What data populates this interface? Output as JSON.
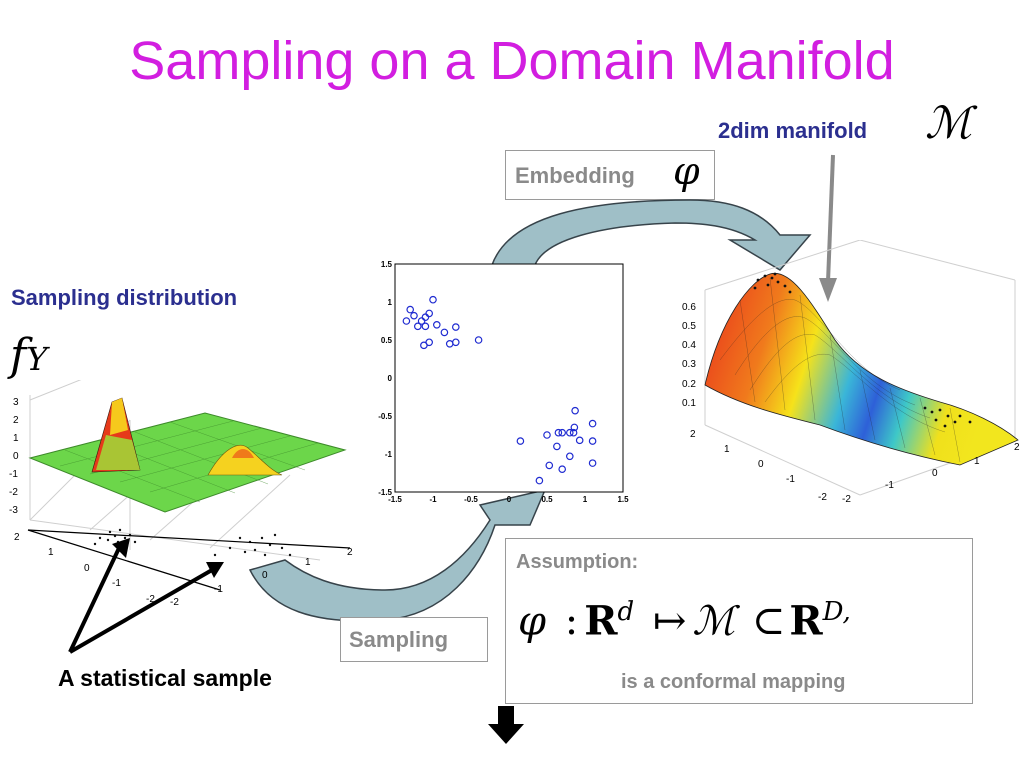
{
  "slide": {
    "title": "Sampling on a Domain Manifold",
    "manifold_label": "2dim manifold",
    "manifold_symbol": "ℳ",
    "embedding_label": "Embedding",
    "embedding_symbol": "φ",
    "sampling_distribution_label": "Sampling distribution",
    "fy_symbol": "f",
    "fy_sub": "Y",
    "statistical_sample_label": "A statistical sample",
    "sampling_label": "Sampling",
    "assumption_label": "Assumption:",
    "formula": {
      "phi": "φ",
      "colon": ":",
      "R1": "R",
      "d": "d",
      "mapsto": "↦",
      "M": "ℳ",
      "subset": "⊂",
      "R2": "R",
      "D": "D,"
    },
    "conformal_text": "is a conformal mapping"
  },
  "left_plot": {
    "z_ticks": [
      "3",
      "2",
      "1",
      "0",
      "-1",
      "-2",
      "-3"
    ],
    "front_ticks": [
      "2",
      "1",
      "0",
      "-1",
      "-2"
    ],
    "right_ticks": [
      "-2",
      "-1",
      "0",
      "1",
      "2"
    ]
  },
  "right_plot": {
    "z_ticks": [
      "0.6",
      "0.5",
      "0.4",
      "0.3",
      "0.2",
      "0.1"
    ],
    "left_ticks": [
      "2",
      "1",
      "0",
      "-1",
      "-2"
    ],
    "right_ticks": [
      "-2",
      "-1",
      "0",
      "1",
      "2"
    ]
  },
  "chart_data": {
    "type": "scatter",
    "xlim": [
      -1.5,
      1.5
    ],
    "ylim": [
      -1.5,
      1.5
    ],
    "x_ticks": [
      "-1.5",
      "-1",
      "-0.5",
      "0",
      "0.5",
      "1",
      "1.5"
    ],
    "y_ticks": [
      "1.5",
      "1",
      "0.5",
      "0",
      "-0.5",
      "-1",
      "-1.5"
    ],
    "marker_color": "#1f2bd1",
    "points": [
      [
        -1.3,
        0.9
      ],
      [
        -1.35,
        0.75
      ],
      [
        -1.25,
        0.82
      ],
      [
        -1.2,
        0.68
      ],
      [
        -1.15,
        0.75
      ],
      [
        -1.1,
        0.8
      ],
      [
        -1.05,
        0.85
      ],
      [
        -1.0,
        1.03
      ],
      [
        -0.95,
        0.7
      ],
      [
        -0.85,
        0.6
      ],
      [
        -1.1,
        0.68
      ],
      [
        -1.05,
        0.47
      ],
      [
        -1.12,
        0.43
      ],
      [
        -0.78,
        0.45
      ],
      [
        -0.7,
        0.47
      ],
      [
        -0.7,
        0.67
      ],
      [
        -0.4,
        0.5
      ],
      [
        0.87,
        -0.43
      ],
      [
        1.1,
        -0.6
      ],
      [
        0.5,
        -0.75
      ],
      [
        0.65,
        -0.72
      ],
      [
        0.7,
        -0.72
      ],
      [
        0.8,
        -0.72
      ],
      [
        0.85,
        -0.72
      ],
      [
        0.86,
        -0.65
      ],
      [
        0.93,
        -0.82
      ],
      [
        1.1,
        -0.83
      ],
      [
        0.15,
        -0.83
      ],
      [
        0.63,
        -0.9
      ],
      [
        0.8,
        -1.03
      ],
      [
        0.53,
        -1.15
      ],
      [
        0.7,
        -1.2
      ],
      [
        1.1,
        -1.12
      ],
      [
        0.4,
        -1.35
      ]
    ]
  },
  "colors": {
    "title": "#d21ee0",
    "label_blue": "#2b2f8f",
    "box_text": "#8a8a8a"
  }
}
